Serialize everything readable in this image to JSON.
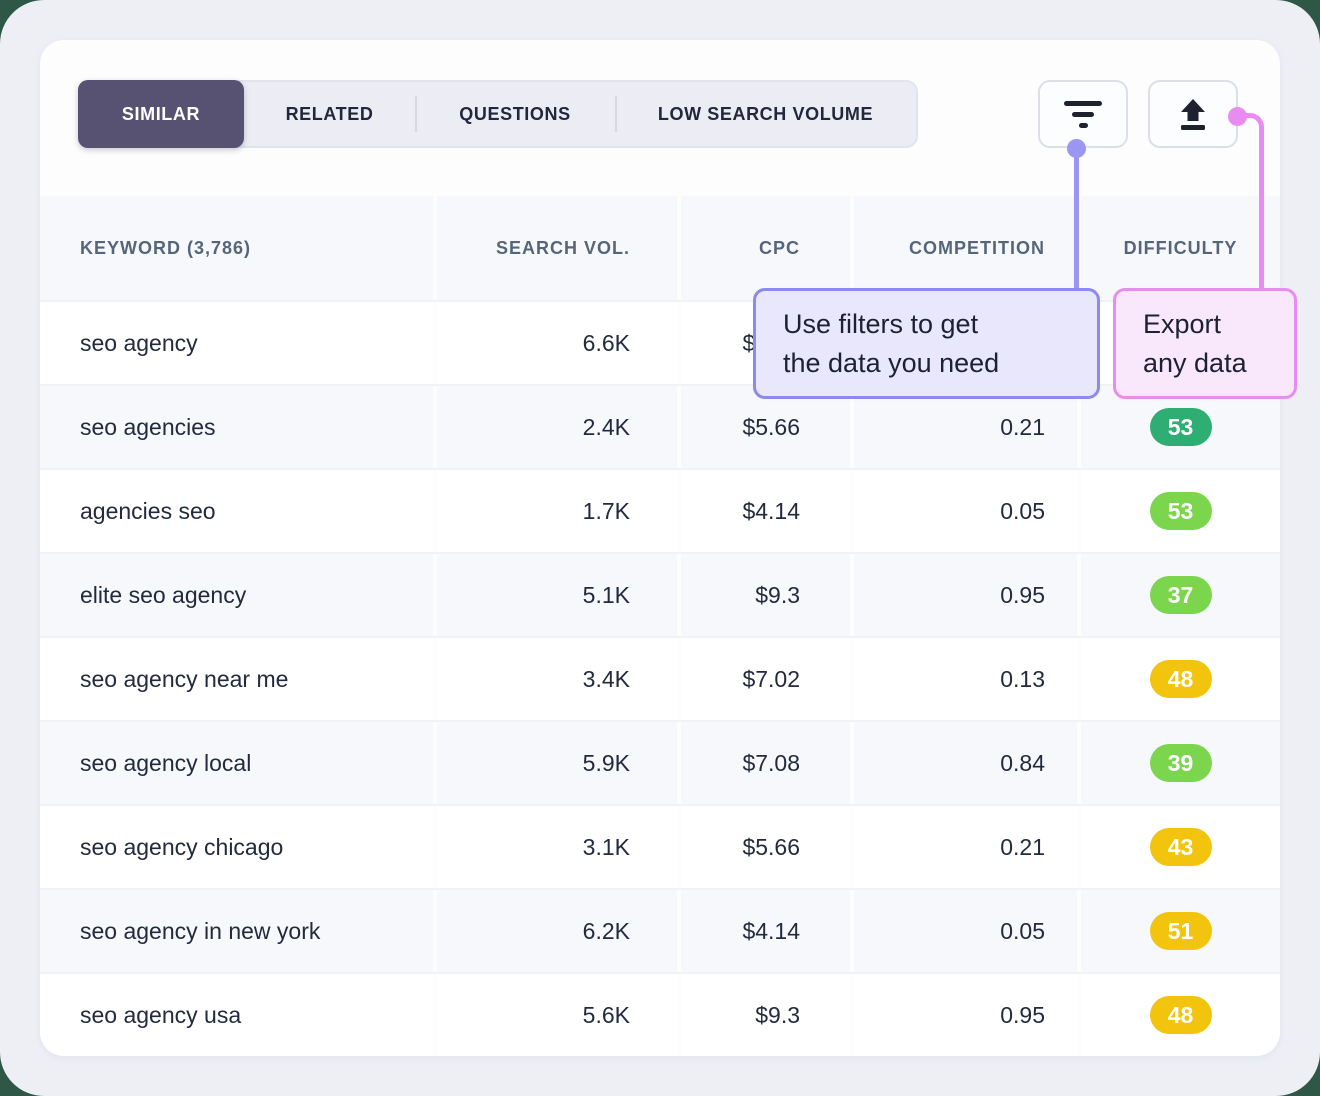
{
  "tabs": [
    {
      "label": "SIMILAR",
      "active": true
    },
    {
      "label": "RELATED",
      "active": false
    },
    {
      "label": "QUESTIONS",
      "active": false
    },
    {
      "label": "LOW SEARCH VOLUME",
      "active": false
    }
  ],
  "toolbar": {
    "filter_button_icon": "filter-lines-icon",
    "export_button_icon": "upload-arrow-icon"
  },
  "table": {
    "columns": [
      {
        "id": "keyword",
        "label": "KEYWORD (3,786)"
      },
      {
        "id": "search_vol",
        "label": "SEARCH VOL."
      },
      {
        "id": "cpc",
        "label": "CPC"
      },
      {
        "id": "competition",
        "label": "COMPETITION"
      },
      {
        "id": "difficulty",
        "label": "DIFFICULTY"
      }
    ],
    "rows": [
      {
        "keyword": "seo agency",
        "search_vol": "6.6K",
        "cpc": "$7.45",
        "competition": "",
        "difficulty": null,
        "difficulty_color": null
      },
      {
        "keyword": "seo agencies",
        "search_vol": "2.4K",
        "cpc": "$5.66",
        "competition": "0.21",
        "difficulty": "53",
        "difficulty_color": "green"
      },
      {
        "keyword": "agencies seo",
        "search_vol": "1.7K",
        "cpc": "$4.14",
        "competition": "0.05",
        "difficulty": "53",
        "difficulty_color": "lime"
      },
      {
        "keyword": "elite seo agency",
        "search_vol": "5.1K",
        "cpc": "$9.3",
        "competition": "0.95",
        "difficulty": "37",
        "difficulty_color": "lime"
      },
      {
        "keyword": "seo agency near me",
        "search_vol": "3.4K",
        "cpc": "$7.02",
        "competition": "0.13",
        "difficulty": "48",
        "difficulty_color": "yellow"
      },
      {
        "keyword": "seo agency local",
        "search_vol": "5.9K",
        "cpc": "$7.08",
        "competition": "0.84",
        "difficulty": "39",
        "difficulty_color": "lime"
      },
      {
        "keyword": "seo agency chicago",
        "search_vol": "3.1K",
        "cpc": "$5.66",
        "competition": "0.21",
        "difficulty": "43",
        "difficulty_color": "yellow"
      },
      {
        "keyword": "seo agency in new york",
        "search_vol": "6.2K",
        "cpc": "$4.14",
        "competition": "0.05",
        "difficulty": "51",
        "difficulty_color": "yellow"
      },
      {
        "keyword": "seo agency usa",
        "search_vol": "5.6K",
        "cpc": "$9.3",
        "competition": "0.95",
        "difficulty": "48",
        "difficulty_color": "yellow"
      }
    ]
  },
  "tooltips": {
    "filter": {
      "text": "Use filters to get the data you need",
      "lines": [
        "Use filters to get",
        "the data you need"
      ]
    },
    "export": {
      "text": "Export any data",
      "lines": [
        "Export",
        "any data"
      ]
    }
  },
  "colors": {
    "badge": {
      "green": "#2fae73",
      "lime": "#7cd64d",
      "yellow": "#f2c40e"
    },
    "active_tab": "#575172",
    "connector_purple": "#9b96f1",
    "connector_pink": "#e98bf1",
    "tooltip_filter_bg": "#e8e7fb",
    "tooltip_filter_border": "#8d89ee",
    "tooltip_export_bg": "#f9e8fc",
    "tooltip_export_border": "#e78df0"
  }
}
